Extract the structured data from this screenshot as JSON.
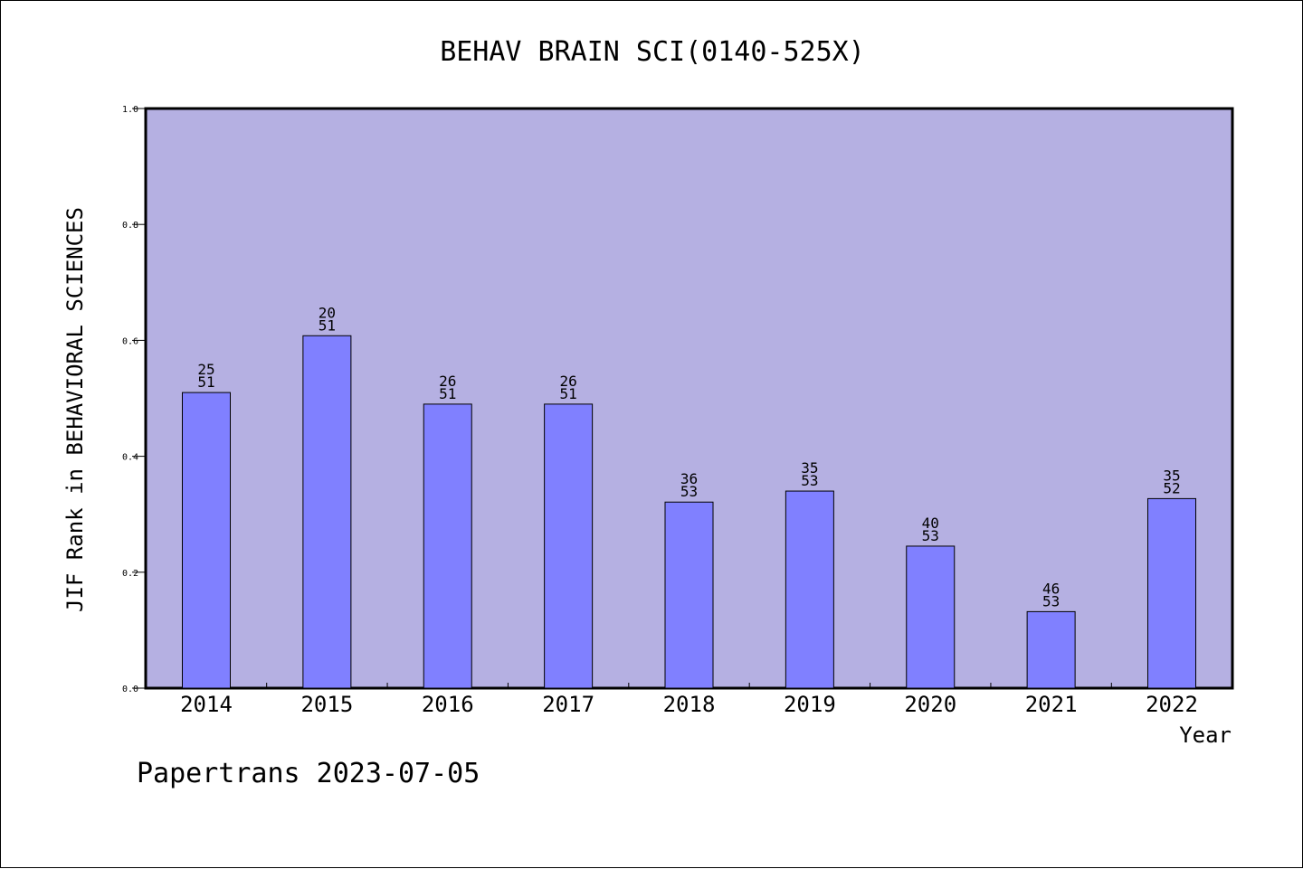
{
  "chart_data": {
    "type": "bar",
    "title": "BEHAV BRAIN SCI(0140-525X)",
    "xlabel": "Year",
    "ylabel": "JIF Rank in BEHAVIORAL SCIENCES",
    "ylim": [
      0,
      1.0
    ],
    "yticks": [
      "0.0",
      "0.2",
      "0.4",
      "0.6",
      "0.8",
      "1.0"
    ],
    "grid": false,
    "categories": [
      "2014",
      "2015",
      "2016",
      "2017",
      "2018",
      "2019",
      "2020",
      "2021",
      "2022"
    ],
    "values": [
      0.51,
      0.608,
      0.49,
      0.49,
      0.321,
      0.34,
      0.245,
      0.132,
      0.327
    ],
    "ranks": [
      "25",
      "20",
      "26",
      "26",
      "36",
      "35",
      "40",
      "46",
      "35"
    ],
    "totals": [
      "51",
      "51",
      "51",
      "51",
      "53",
      "53",
      "53",
      "53",
      "52"
    ]
  },
  "footer": "Papertrans 2023-07-05",
  "colors": {
    "plot_background": "#b5b0e2",
    "bar_fill": "#8080ff",
    "axis": "#000000"
  }
}
